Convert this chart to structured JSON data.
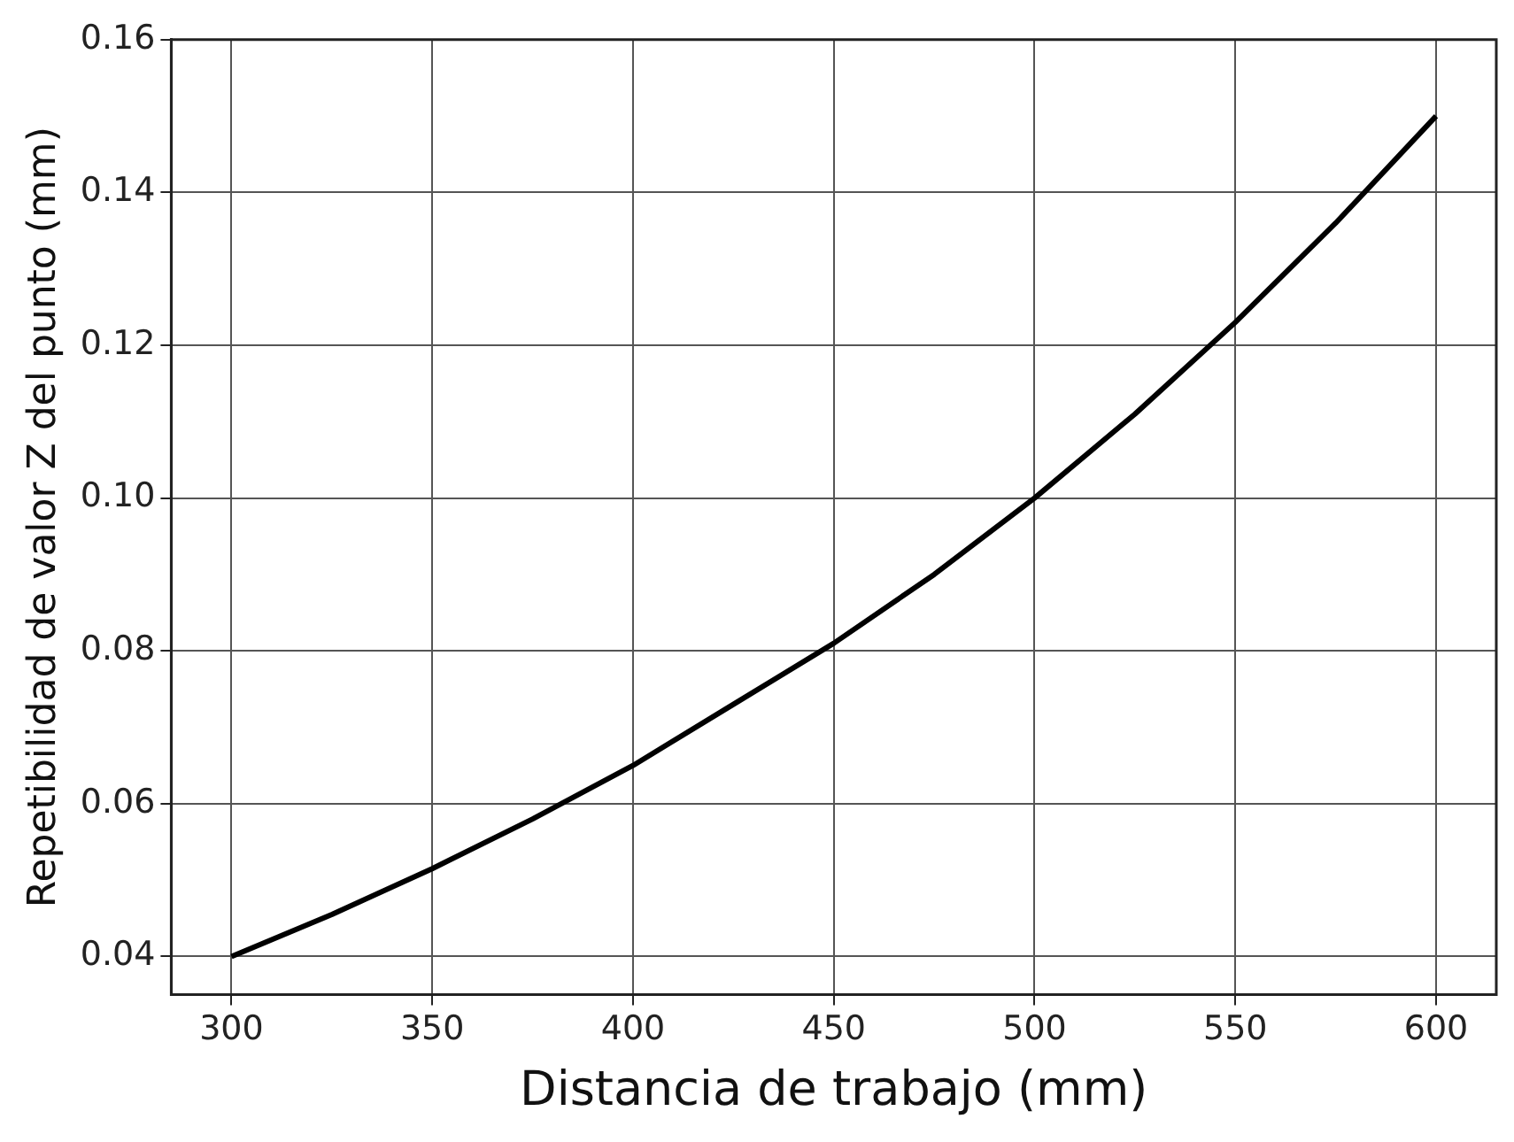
{
  "chart_data": {
    "type": "line",
    "xlabel": "Distancia de trabajo (mm)",
    "ylabel": "Repetibilidad de valor Z del punto (mm)",
    "x": [
      300,
      325,
      350,
      375,
      400,
      425,
      450,
      475,
      500,
      525,
      550,
      575,
      600
    ],
    "series": [
      {
        "color": "#000000",
        "values": [
          0.04,
          0.0455,
          0.0515,
          0.058,
          0.065,
          0.073,
          0.081,
          0.09,
          0.1,
          0.111,
          0.123,
          0.136,
          0.15
        ]
      }
    ],
    "xlim": [
      285,
      615
    ],
    "xticks": [
      300,
      350,
      400,
      450,
      500,
      550,
      600
    ],
    "ylim": [
      0.035,
      0.16
    ],
    "yticks": [
      0.04,
      0.06,
      0.08,
      {
        "value": 0.1,
        "label": "0.10"
      },
      0.12,
      0.14,
      0.16
    ],
    "grid": true,
    "legend": false,
    "marker": "none",
    "line_style": "solid"
  }
}
